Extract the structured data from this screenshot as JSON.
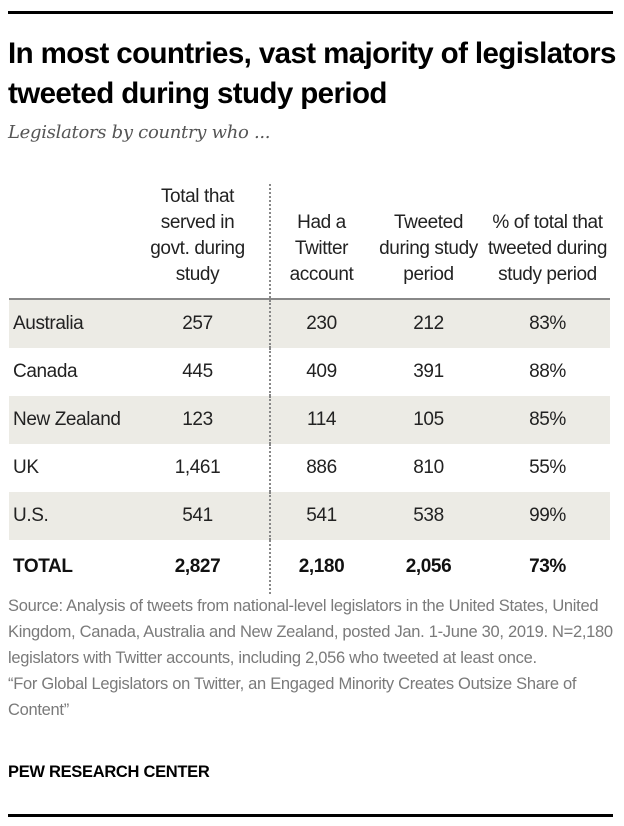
{
  "chart_data": {
    "type": "table",
    "title": "In most countries, vast majority of legislators tweeted during study period",
    "subtitle": "Legislators by country who ...",
    "columns": [
      "",
      "Total that served in govt. during study",
      "Had a Twitter account",
      "Tweeted during study period",
      "% of total that tweeted during study period"
    ],
    "rows": [
      {
        "country": "Australia",
        "total": "257",
        "twitter": "230",
        "tweeted": "212",
        "pct": "83%"
      },
      {
        "country": "Canada",
        "total": "445",
        "twitter": "409",
        "tweeted": "391",
        "pct": "88%"
      },
      {
        "country": "New Zealand",
        "total": "123",
        "twitter": "114",
        "tweeted": "105",
        "pct": "85%"
      },
      {
        "country": "UK",
        "total": "1,461",
        "twitter": "886",
        "tweeted": "810",
        "pct": "55%"
      },
      {
        "country": "U.S.",
        "total": "541",
        "twitter": "541",
        "tweeted": "538",
        "pct": "99%"
      }
    ],
    "total": {
      "label": "TOTAL",
      "total": "2,827",
      "twitter": "2,180",
      "tweeted": "2,056",
      "pct": "73%"
    },
    "shade_color": "#ecebe5"
  },
  "notes": {
    "source": "Source: Analysis of tweets from national-level legislators in the United States, United Kingdom, Canada, Australia and New Zealand, posted Jan. 1-June 30, 2019. N=2,180 legislators with Twitter accounts, including 2,056 who tweeted at least once.",
    "report": "“For Global Legislators on Twitter, an Engaged Minority Creates Outsize Share of Content”"
  },
  "brand": "PEW RESEARCH CENTER"
}
